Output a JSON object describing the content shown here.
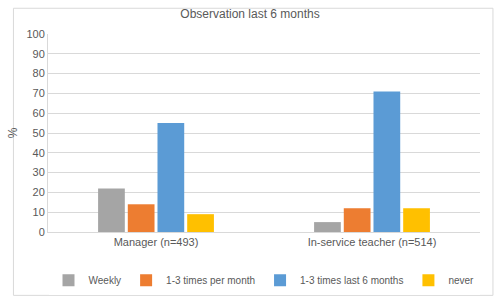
{
  "chart_data": {
    "type": "bar",
    "title": "Observation last 6 months",
    "y_label": "%",
    "categories": [
      "Manager (n=493)",
      "In-service teacher (n=514)"
    ],
    "series": [
      {
        "name": "Weekly",
        "color": "#a5a5a5",
        "values": [
          22,
          5
        ]
      },
      {
        "name": "1-3 times per month",
        "color": "#ed7d31",
        "values": [
          14,
          12
        ]
      },
      {
        "name": "1-3 times last 6 months",
        "color": "#5b9bd5",
        "values": [
          55,
          71
        ]
      },
      {
        "name": "never",
        "color": "#ffc000",
        "values": [
          9,
          12
        ]
      }
    ],
    "ylim": [
      0,
      100
    ],
    "yticks": [
      0,
      10,
      20,
      30,
      40,
      50,
      60,
      70,
      80,
      90,
      100
    ],
    "grid": true,
    "legend": "bottom"
  }
}
